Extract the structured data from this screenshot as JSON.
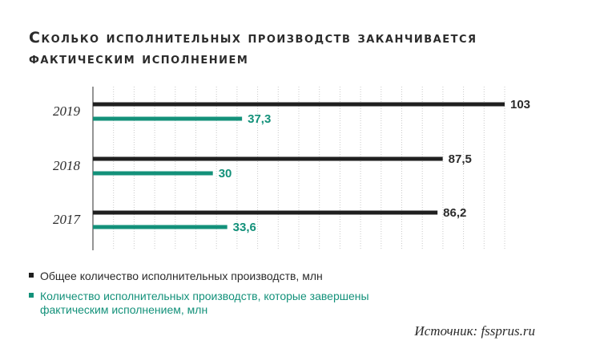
{
  "title": "Сколько исполнительных производств заканчивается фактическим исполнением",
  "legend": {
    "total": "Общее количество исполнительных производств, млн",
    "actual_line1": "Количество исполнительных производств, которые завершены",
    "actual_line2": "фактическим исполнением, млн"
  },
  "source": "Источник: fssprus.ru",
  "colors": {
    "total": "#1f1f1f",
    "actual": "#13917a",
    "grid": "#c9c9c9"
  },
  "chart_data": {
    "type": "bar",
    "orientation": "horizontal",
    "categories": [
      "2019",
      "2018",
      "2017"
    ],
    "series": [
      {
        "name": "Общее количество исполнительных производств, млн",
        "values": [
          103,
          87.5,
          86.2
        ],
        "labels": [
          "103",
          "87,5",
          "86,2"
        ]
      },
      {
        "name": "Количество исполнительных производств, которые завершены фактическим исполнением, млн",
        "values": [
          37.3,
          30,
          33.6
        ],
        "labels": [
          "37,3",
          "30",
          "33,6"
        ]
      }
    ],
    "xlim": [
      0,
      103
    ],
    "grid": true
  }
}
